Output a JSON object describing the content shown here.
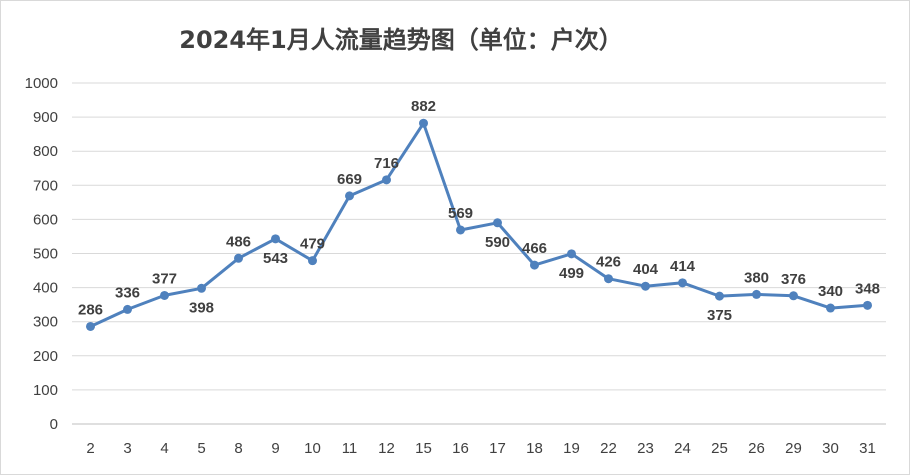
{
  "chart_data": {
    "type": "line",
    "title": "2024年1月人流量趋势图（单位：户次）",
    "xlabel": "",
    "ylabel": "",
    "categories": [
      "2",
      "3",
      "4",
      "5",
      "8",
      "9",
      "10",
      "11",
      "12",
      "15",
      "16",
      "17",
      "18",
      "19",
      "22",
      "23",
      "24",
      "25",
      "26",
      "29",
      "30",
      "31"
    ],
    "series": [
      {
        "values": [
          286,
          336,
          377,
          398,
          486,
          543,
          479,
          669,
          716,
          882,
          569,
          590,
          466,
          499,
          426,
          404,
          414,
          375,
          380,
          376,
          340,
          348
        ],
        "color": "#4f81bd"
      }
    ],
    "ylim": [
      0,
      1000
    ],
    "yticks": [
      0,
      100,
      200,
      300,
      400,
      500,
      600,
      700,
      800,
      900,
      1000
    ],
    "grid": true,
    "legend": "none",
    "markers": "circle",
    "data_label_positions": [
      "above",
      "above",
      "above",
      "below",
      "above",
      "below",
      "above",
      "above",
      "above",
      "above",
      "above",
      "below",
      "above",
      "below",
      "above",
      "above",
      "above",
      "below",
      "above",
      "above",
      "above",
      "above"
    ]
  }
}
